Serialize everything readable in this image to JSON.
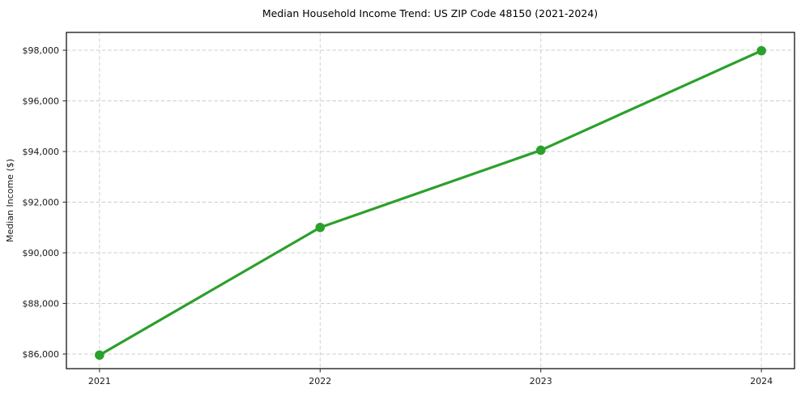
{
  "figure": {
    "title": "Median Household Income Trend: US ZIP Code 48150 (2021-2024)"
  },
  "chart_data": {
    "type": "line",
    "title": "Median Household Income Trend: US ZIP Code 48150 (2021-2024)",
    "xlabel": "",
    "ylabel": "Median Income ($)",
    "x": [
      2021,
      2022,
      2023,
      2024
    ],
    "series": [
      {
        "name": "Median Household Income",
        "values": [
          85960,
          91000,
          94050,
          97980
        ],
        "color": "#2ca02c",
        "marker": "circle"
      }
    ],
    "xlim": [
      2020.85,
      2024.15
    ],
    "ylim": [
      85424,
      98704
    ],
    "xticks": [
      2021,
      2022,
      2023,
      2024
    ],
    "xtick_labels": [
      "2021",
      "2022",
      "2023",
      "2024"
    ],
    "yticks": [
      86000,
      88000,
      90000,
      92000,
      94000,
      96000,
      98000
    ],
    "ytick_labels": [
      "$86,000",
      "$88,000",
      "$90,000",
      "$92,000",
      "$94,000",
      "$96,000",
      "$98,000"
    ],
    "grid": true,
    "grid_style": "dashed",
    "grid_color": "#cccccc",
    "spine_color": "#000000",
    "tick_color": "#333333",
    "legend_position": "none",
    "background_color": "#ffffff"
  }
}
